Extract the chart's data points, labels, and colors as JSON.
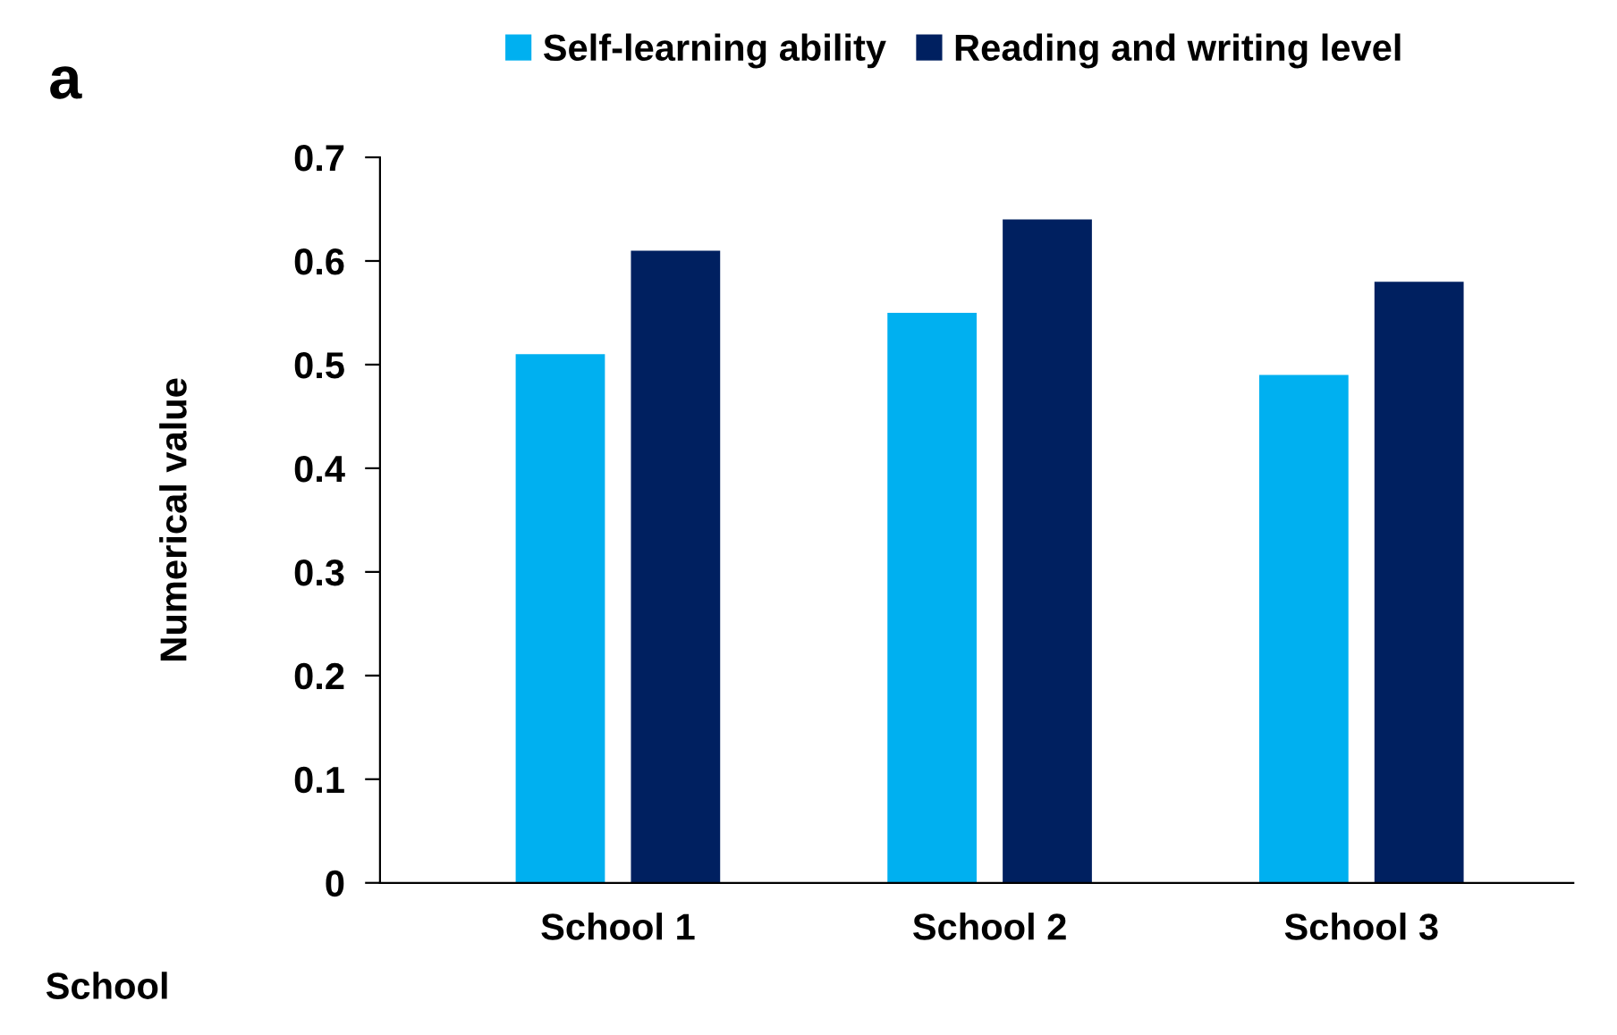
{
  "chart_data": {
    "type": "bar",
    "annotations": [
      "a"
    ],
    "xlabel": "School",
    "ylabel": "Numerical value",
    "categories": [
      "School 1",
      "School 2",
      "School 3"
    ],
    "series": [
      {
        "name": "Self-learning ability",
        "color": "#00b0f0",
        "values": [
          0.51,
          0.55,
          0.49
        ]
      },
      {
        "name": "Reading and writing level",
        "color": "#002060",
        "values": [
          0.61,
          0.64,
          0.58
        ]
      }
    ],
    "ylim": [
      0,
      0.7
    ],
    "yticks": [
      0,
      0.1,
      0.2,
      0.3,
      0.4,
      0.5,
      0.6,
      0.7
    ],
    "grid": false,
    "legend": "top"
  }
}
